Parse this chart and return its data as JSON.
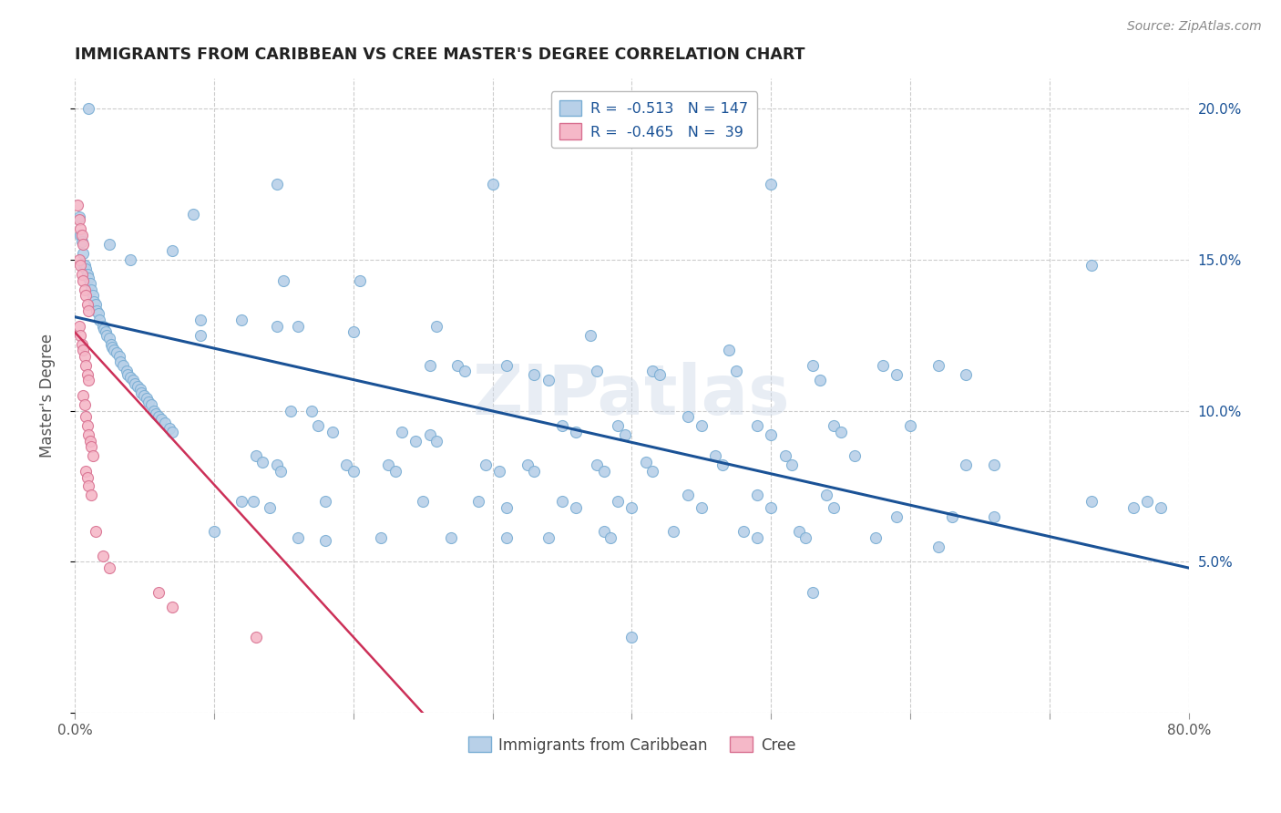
{
  "title": "IMMIGRANTS FROM CARIBBEAN VS CREE MASTER'S DEGREE CORRELATION CHART",
  "source": "Source: ZipAtlas.com",
  "ylabel": "Master's Degree",
  "xlim": [
    0.0,
    0.8
  ],
  "ylim": [
    0.0,
    0.21
  ],
  "yticks": [
    0.0,
    0.05,
    0.1,
    0.15,
    0.2
  ],
  "yticklabels_right": [
    "",
    "5.0%",
    "10.0%",
    "15.0%",
    "20.0%"
  ],
  "blue_color": "#b8d0e8",
  "blue_edge_color": "#7aaed4",
  "blue_line_color": "#1a5296",
  "pink_color": "#f5b8c8",
  "pink_edge_color": "#d87090",
  "pink_line_color": "#cc3058",
  "watermark": "ZIPatlas",
  "blue_scatter": [
    [
      0.003,
      0.164
    ],
    [
      0.004,
      0.158
    ],
    [
      0.005,
      0.156
    ],
    [
      0.006,
      0.152
    ],
    [
      0.006,
      0.148
    ],
    [
      0.007,
      0.148
    ],
    [
      0.008,
      0.147
    ],
    [
      0.009,
      0.145
    ],
    [
      0.01,
      0.144
    ],
    [
      0.011,
      0.142
    ],
    [
      0.012,
      0.14
    ],
    [
      0.013,
      0.138
    ],
    [
      0.014,
      0.136
    ],
    [
      0.015,
      0.135
    ],
    [
      0.016,
      0.133
    ],
    [
      0.017,
      0.132
    ],
    [
      0.018,
      0.13
    ],
    [
      0.02,
      0.128
    ],
    [
      0.021,
      0.127
    ],
    [
      0.022,
      0.126
    ],
    [
      0.023,
      0.125
    ],
    [
      0.025,
      0.124
    ],
    [
      0.026,
      0.122
    ],
    [
      0.027,
      0.121
    ],
    [
      0.028,
      0.12
    ],
    [
      0.03,
      0.119
    ],
    [
      0.032,
      0.118
    ],
    [
      0.033,
      0.116
    ],
    [
      0.035,
      0.115
    ],
    [
      0.037,
      0.113
    ],
    [
      0.038,
      0.112
    ],
    [
      0.04,
      0.111
    ],
    [
      0.042,
      0.11
    ],
    [
      0.043,
      0.109
    ],
    [
      0.045,
      0.108
    ],
    [
      0.047,
      0.107
    ],
    [
      0.048,
      0.106
    ],
    [
      0.05,
      0.105
    ],
    [
      0.052,
      0.104
    ],
    [
      0.053,
      0.103
    ],
    [
      0.055,
      0.102
    ],
    [
      0.057,
      0.1
    ],
    [
      0.058,
      0.099
    ],
    [
      0.06,
      0.098
    ],
    [
      0.062,
      0.097
    ],
    [
      0.065,
      0.096
    ],
    [
      0.068,
      0.094
    ],
    [
      0.07,
      0.093
    ],
    [
      0.01,
      0.2
    ],
    [
      0.085,
      0.165
    ],
    [
      0.025,
      0.155
    ],
    [
      0.04,
      0.15
    ],
    [
      0.07,
      0.153
    ],
    [
      0.145,
      0.175
    ],
    [
      0.3,
      0.175
    ],
    [
      0.5,
      0.175
    ],
    [
      0.15,
      0.143
    ],
    [
      0.205,
      0.143
    ],
    [
      0.73,
      0.148
    ],
    [
      0.09,
      0.13
    ],
    [
      0.12,
      0.13
    ],
    [
      0.145,
      0.128
    ],
    [
      0.16,
      0.128
    ],
    [
      0.2,
      0.126
    ],
    [
      0.26,
      0.128
    ],
    [
      0.09,
      0.125
    ],
    [
      0.255,
      0.115
    ],
    [
      0.275,
      0.115
    ],
    [
      0.28,
      0.113
    ],
    [
      0.31,
      0.115
    ],
    [
      0.33,
      0.112
    ],
    [
      0.34,
      0.11
    ],
    [
      0.37,
      0.125
    ],
    [
      0.375,
      0.113
    ],
    [
      0.415,
      0.113
    ],
    [
      0.42,
      0.112
    ],
    [
      0.47,
      0.12
    ],
    [
      0.475,
      0.113
    ],
    [
      0.53,
      0.115
    ],
    [
      0.535,
      0.11
    ],
    [
      0.58,
      0.115
    ],
    [
      0.59,
      0.112
    ],
    [
      0.62,
      0.115
    ],
    [
      0.64,
      0.112
    ],
    [
      0.155,
      0.1
    ],
    [
      0.17,
      0.1
    ],
    [
      0.175,
      0.095
    ],
    [
      0.185,
      0.093
    ],
    [
      0.235,
      0.093
    ],
    [
      0.245,
      0.09
    ],
    [
      0.255,
      0.092
    ],
    [
      0.26,
      0.09
    ],
    [
      0.35,
      0.095
    ],
    [
      0.36,
      0.093
    ],
    [
      0.39,
      0.095
    ],
    [
      0.395,
      0.092
    ],
    [
      0.44,
      0.098
    ],
    [
      0.45,
      0.095
    ],
    [
      0.49,
      0.095
    ],
    [
      0.5,
      0.092
    ],
    [
      0.545,
      0.095
    ],
    [
      0.55,
      0.093
    ],
    [
      0.6,
      0.095
    ],
    [
      0.13,
      0.085
    ],
    [
      0.135,
      0.083
    ],
    [
      0.145,
      0.082
    ],
    [
      0.148,
      0.08
    ],
    [
      0.195,
      0.082
    ],
    [
      0.2,
      0.08
    ],
    [
      0.225,
      0.082
    ],
    [
      0.23,
      0.08
    ],
    [
      0.295,
      0.082
    ],
    [
      0.305,
      0.08
    ],
    [
      0.325,
      0.082
    ],
    [
      0.33,
      0.08
    ],
    [
      0.375,
      0.082
    ],
    [
      0.38,
      0.08
    ],
    [
      0.41,
      0.083
    ],
    [
      0.415,
      0.08
    ],
    [
      0.46,
      0.085
    ],
    [
      0.465,
      0.082
    ],
    [
      0.51,
      0.085
    ],
    [
      0.515,
      0.082
    ],
    [
      0.56,
      0.085
    ],
    [
      0.64,
      0.082
    ],
    [
      0.66,
      0.082
    ],
    [
      0.73,
      0.07
    ],
    [
      0.76,
      0.068
    ],
    [
      0.77,
      0.07
    ],
    [
      0.78,
      0.068
    ],
    [
      0.12,
      0.07
    ],
    [
      0.128,
      0.07
    ],
    [
      0.14,
      0.068
    ],
    [
      0.18,
      0.07
    ],
    [
      0.25,
      0.07
    ],
    [
      0.29,
      0.07
    ],
    [
      0.31,
      0.068
    ],
    [
      0.35,
      0.07
    ],
    [
      0.36,
      0.068
    ],
    [
      0.39,
      0.07
    ],
    [
      0.4,
      0.068
    ],
    [
      0.44,
      0.072
    ],
    [
      0.45,
      0.068
    ],
    [
      0.49,
      0.072
    ],
    [
      0.5,
      0.068
    ],
    [
      0.54,
      0.072
    ],
    [
      0.545,
      0.068
    ],
    [
      0.59,
      0.065
    ],
    [
      0.63,
      0.065
    ],
    [
      0.66,
      0.065
    ],
    [
      0.1,
      0.06
    ],
    [
      0.16,
      0.058
    ],
    [
      0.18,
      0.057
    ],
    [
      0.22,
      0.058
    ],
    [
      0.27,
      0.058
    ],
    [
      0.31,
      0.058
    ],
    [
      0.34,
      0.058
    ],
    [
      0.38,
      0.06
    ],
    [
      0.385,
      0.058
    ],
    [
      0.43,
      0.06
    ],
    [
      0.48,
      0.06
    ],
    [
      0.49,
      0.058
    ],
    [
      0.52,
      0.06
    ],
    [
      0.525,
      0.058
    ],
    [
      0.575,
      0.058
    ],
    [
      0.62,
      0.055
    ],
    [
      0.53,
      0.04
    ],
    [
      0.4,
      0.025
    ]
  ],
  "pink_scatter": [
    [
      0.002,
      0.168
    ],
    [
      0.003,
      0.163
    ],
    [
      0.004,
      0.16
    ],
    [
      0.005,
      0.158
    ],
    [
      0.006,
      0.155
    ],
    [
      0.003,
      0.15
    ],
    [
      0.004,
      0.148
    ],
    [
      0.005,
      0.145
    ],
    [
      0.006,
      0.143
    ],
    [
      0.007,
      0.14
    ],
    [
      0.008,
      0.138
    ],
    [
      0.009,
      0.135
    ],
    [
      0.01,
      0.133
    ],
    [
      0.003,
      0.128
    ],
    [
      0.004,
      0.125
    ],
    [
      0.005,
      0.122
    ],
    [
      0.006,
      0.12
    ],
    [
      0.007,
      0.118
    ],
    [
      0.008,
      0.115
    ],
    [
      0.009,
      0.112
    ],
    [
      0.01,
      0.11
    ],
    [
      0.006,
      0.105
    ],
    [
      0.007,
      0.102
    ],
    [
      0.008,
      0.098
    ],
    [
      0.009,
      0.095
    ],
    [
      0.01,
      0.092
    ],
    [
      0.011,
      0.09
    ],
    [
      0.012,
      0.088
    ],
    [
      0.013,
      0.085
    ],
    [
      0.008,
      0.08
    ],
    [
      0.009,
      0.078
    ],
    [
      0.01,
      0.075
    ],
    [
      0.012,
      0.072
    ],
    [
      0.015,
      0.06
    ],
    [
      0.02,
      0.052
    ],
    [
      0.025,
      0.048
    ],
    [
      0.06,
      0.04
    ],
    [
      0.07,
      0.035
    ],
    [
      0.13,
      0.025
    ]
  ],
  "blue_line": [
    [
      0.0,
      0.131
    ],
    [
      0.8,
      0.048
    ]
  ],
  "pink_line": [
    [
      0.0,
      0.126
    ],
    [
      0.25,
      0.0
    ]
  ]
}
